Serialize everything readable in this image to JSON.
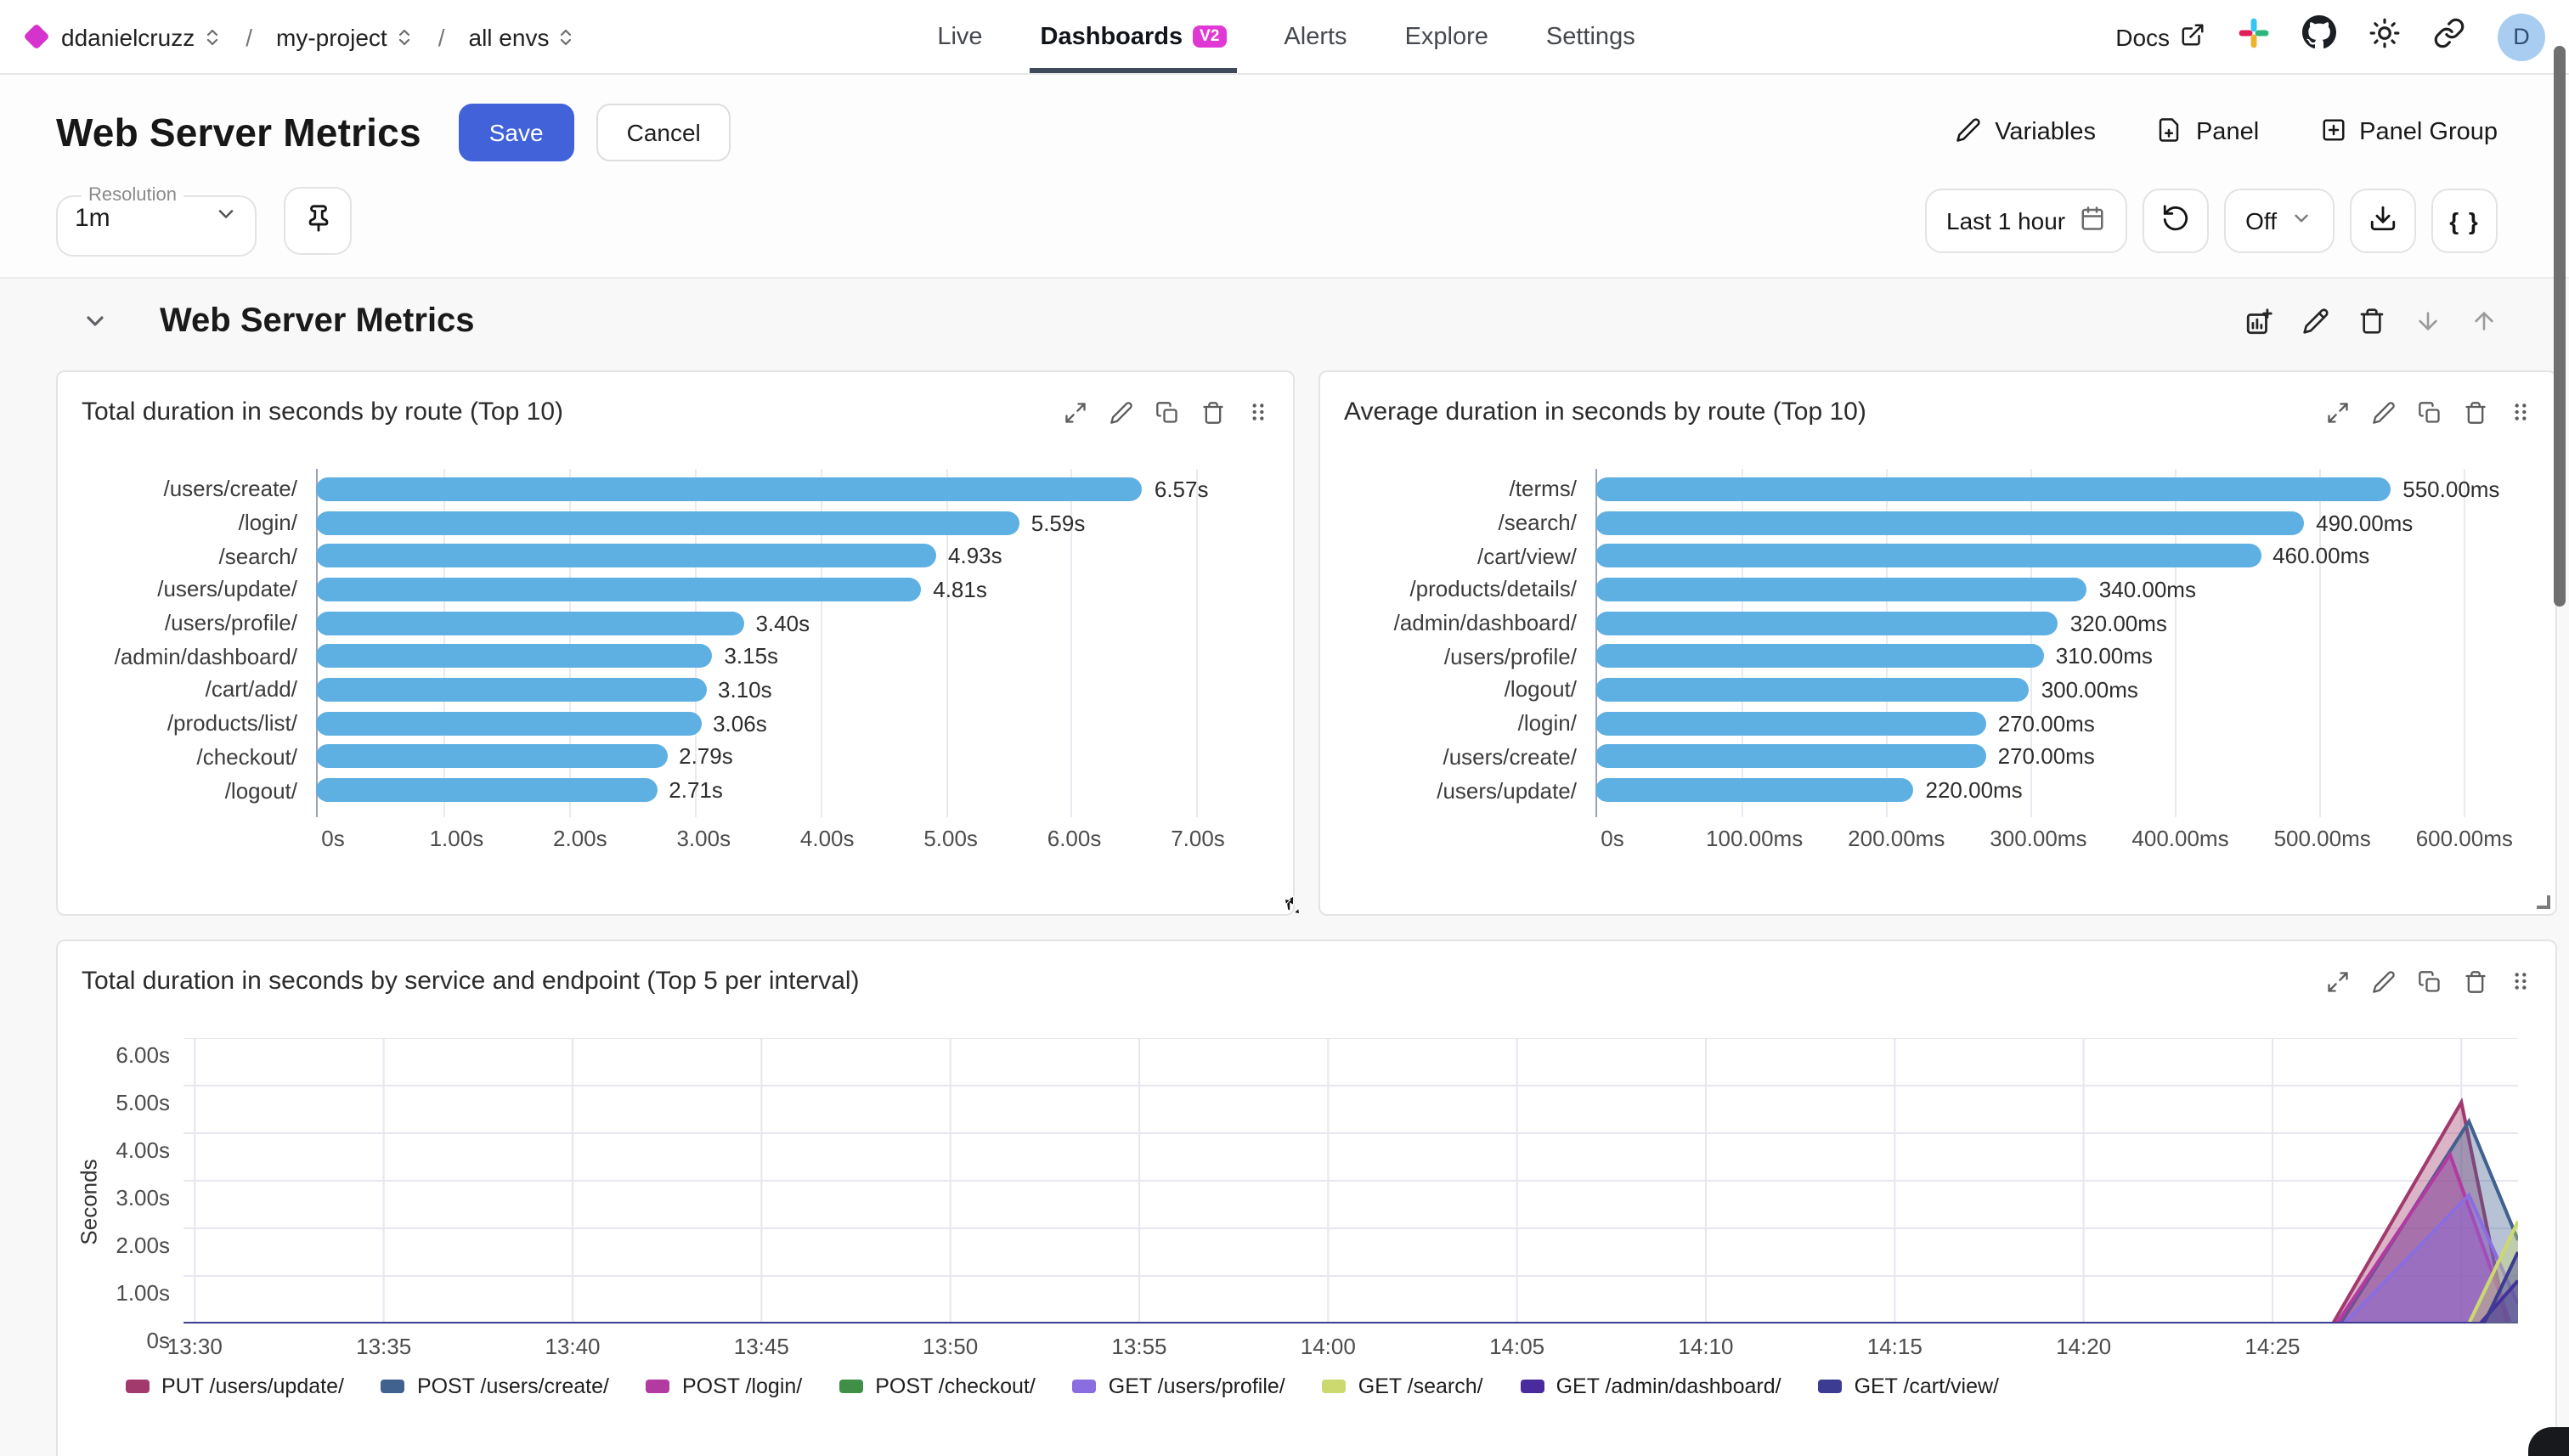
{
  "nav": {
    "breadcrumb": {
      "org": "ddanielcruzz",
      "project": "my-project",
      "env": "all envs",
      "sep": "/"
    },
    "tabs": [
      {
        "label": "Live",
        "active": false
      },
      {
        "label": "Dashboards",
        "badge": "V2",
        "active": true
      },
      {
        "label": "Alerts",
        "active": false
      },
      {
        "label": "Explore",
        "active": false
      },
      {
        "label": "Settings",
        "active": false
      }
    ],
    "docs_label": "Docs",
    "avatar_letter": "D"
  },
  "header": {
    "title": "Web Server Metrics",
    "save_label": "Save",
    "cancel_label": "Cancel",
    "variables_label": "Variables",
    "panel_label": "Panel",
    "panel_group_label": "Panel Group"
  },
  "toolbar": {
    "resolution_label": "Resolution",
    "resolution_value": "1m",
    "time_range_value": "Last 1 hour",
    "auto_refresh_value": "Off",
    "braces_label": "{ }"
  },
  "section": {
    "title": "Web Server Metrics"
  },
  "colors": {
    "accent_blue": "#4262d9",
    "badge_magenta": "#e038d4",
    "logo_magenta": "#d633cc",
    "bar_blue": "#5eb0e2",
    "avatar_bg": "#a9cdf0"
  },
  "chart_data": [
    {
      "type": "bar",
      "orientation": "horizontal",
      "title": "Total duration in seconds by route (Top 10)",
      "categories": [
        "/users/create/",
        "/login/",
        "/search/",
        "/users/update/",
        "/users/profile/",
        "/admin/dashboard/",
        "/cart/add/",
        "/products/list/",
        "/checkout/",
        "/logout/"
      ],
      "values": [
        6.57,
        5.59,
        4.93,
        4.81,
        3.4,
        3.15,
        3.1,
        3.06,
        2.79,
        2.71
      ],
      "value_labels": [
        "6.57s",
        "5.59s",
        "4.93s",
        "4.81s",
        "3.40s",
        "3.15s",
        "3.10s",
        "3.06s",
        "2.79s",
        "2.71s"
      ],
      "x_ticks": [
        {
          "value": 0,
          "label": "0s"
        },
        {
          "value": 1,
          "label": "1.00s"
        },
        {
          "value": 2,
          "label": "2.00s"
        },
        {
          "value": 3,
          "label": "3.00s"
        },
        {
          "value": 4,
          "label": "4.00s"
        },
        {
          "value": 5,
          "label": "5.00s"
        },
        {
          "value": 6,
          "label": "6.00s"
        },
        {
          "value": 7,
          "label": "7.00s"
        }
      ],
      "axis_max": 7.55,
      "bar_color": "#5eb0e2",
      "grid": true
    },
    {
      "type": "bar",
      "orientation": "horizontal",
      "title": "Average duration in seconds by route (Top 10)",
      "categories": [
        "/terms/",
        "/search/",
        "/cart/view/",
        "/products/details/",
        "/admin/dashboard/",
        "/users/profile/",
        "/logout/",
        "/login/",
        "/users/create/",
        "/users/update/"
      ],
      "values": [
        550,
        490,
        460,
        340,
        320,
        310,
        300,
        270,
        270,
        220
      ],
      "value_labels": [
        "550.00ms",
        "490.00ms",
        "460.00ms",
        "340.00ms",
        "320.00ms",
        "310.00ms",
        "300.00ms",
        "270.00ms",
        "270.00ms",
        "220.00ms"
      ],
      "x_ticks": [
        {
          "value": 0,
          "label": "0s"
        },
        {
          "value": 100,
          "label": "100.00ms"
        },
        {
          "value": 200,
          "label": "200.00ms"
        },
        {
          "value": 300,
          "label": "300.00ms"
        },
        {
          "value": 400,
          "label": "400.00ms"
        },
        {
          "value": 500,
          "label": "500.00ms"
        },
        {
          "value": 600,
          "label": "600.00ms"
        }
      ],
      "axis_max": 645,
      "bar_color": "#5eb0e2",
      "grid": true
    },
    {
      "type": "area",
      "title": "Total duration in seconds by service and endpoint (Top 5 per interval)",
      "ylabel": "Seconds",
      "ylim": [
        0,
        6
      ],
      "y_ticks": [
        {
          "value": 0,
          "label": "0s"
        },
        {
          "value": 1,
          "label": "1.00s"
        },
        {
          "value": 2,
          "label": "2.00s"
        },
        {
          "value": 3,
          "label": "3.00s"
        },
        {
          "value": 4,
          "label": "4.00s"
        },
        {
          "value": 5,
          "label": "5.00s"
        },
        {
          "value": 6,
          "label": "6.00s"
        }
      ],
      "x_domain_minutes": [
        -0.3,
        61.5
      ],
      "x_ticks": [
        {
          "minute": 0,
          "label": "13:30"
        },
        {
          "minute": 5,
          "label": "13:35"
        },
        {
          "minute": 10,
          "label": "13:40"
        },
        {
          "minute": 15,
          "label": "13:45"
        },
        {
          "minute": 20,
          "label": "13:50"
        },
        {
          "minute": 25,
          "label": "13:55"
        },
        {
          "minute": 30,
          "label": "14:00"
        },
        {
          "minute": 35,
          "label": "14:05"
        },
        {
          "minute": 40,
          "label": "14:10"
        },
        {
          "minute": 45,
          "label": "14:15"
        },
        {
          "minute": 50,
          "label": "14:20"
        },
        {
          "minute": 55,
          "label": "14:25"
        }
      ],
      "legend_position": "bottom",
      "grid": true,
      "series": [
        {
          "name": "PUT /users/update/",
          "color": "#a23a6e",
          "points": [
            [
              -0.3,
              0
            ],
            [
              56.6,
              0
            ],
            [
              60.0,
              4.65
            ],
            [
              61.2,
              0
            ],
            [
              61.5,
              0
            ]
          ]
        },
        {
          "name": "POST /users/create/",
          "color": "#41618e",
          "points": [
            [
              -0.3,
              0
            ],
            [
              56.8,
              0
            ],
            [
              60.2,
              4.25
            ],
            [
              61.5,
              1.75
            ]
          ]
        },
        {
          "name": "POST /login/",
          "color": "#b23aa0",
          "points": [
            [
              -0.3,
              0
            ],
            [
              56.7,
              0
            ],
            [
              59.7,
              3.55
            ],
            [
              61.3,
              0
            ],
            [
              61.5,
              0
            ]
          ]
        },
        {
          "name": "POST /checkout/",
          "color": "#3f8f46",
          "points": [
            [
              -0.3,
              0
            ],
            [
              61.5,
              0
            ]
          ]
        },
        {
          "name": "GET /users/profile/",
          "color": "#8a6de0",
          "points": [
            [
              -0.3,
              0
            ],
            [
              56.9,
              0
            ],
            [
              60.2,
              2.7
            ],
            [
              61.5,
              0.4
            ]
          ]
        },
        {
          "name": "GET /search/",
          "color": "#ccd96e",
          "points": [
            [
              -0.3,
              0
            ],
            [
              60.2,
              0
            ],
            [
              61.5,
              2.15
            ]
          ]
        },
        {
          "name": "GET /admin/dashboard/",
          "color": "#4a2b9e",
          "points": [
            [
              -0.3,
              0
            ],
            [
              60.5,
              0
            ],
            [
              61.5,
              0.9
            ]
          ]
        },
        {
          "name": "GET /cart/view/",
          "color": "#3c3d92",
          "points": [
            [
              -0.3,
              0
            ],
            [
              60.6,
              0
            ],
            [
              61.5,
              1.5
            ]
          ]
        }
      ]
    }
  ]
}
